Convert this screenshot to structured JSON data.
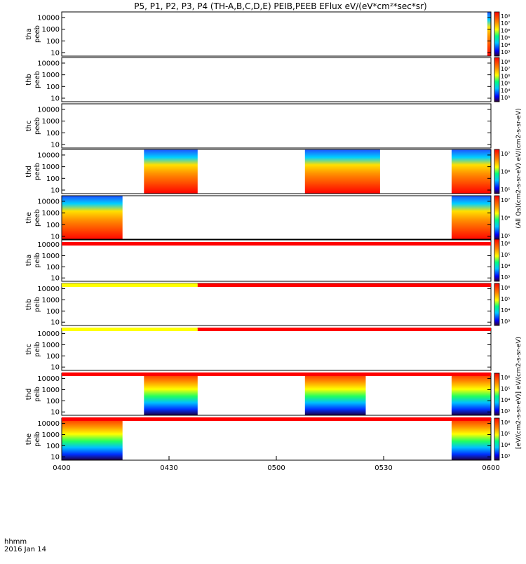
{
  "title": "P5, P1, P2, P3, P4 (TH-A,B,C,D,E) PEIB,PEEB EFlux eV/(eV*cm²*sec*sr)",
  "x_axis": {
    "ticks": [
      "0400",
      "0430",
      "0500",
      "0530",
      "0600"
    ],
    "label": "hhmm",
    "date": "2016 Jan 14"
  },
  "y_ticks": [
    "10000",
    "1000",
    "100",
    "10"
  ],
  "colorbar_label_electron": "(All Qs)(cm2-s-sr-eV) eV/(cm2-s-sr-eV)",
  "colorbar_label_ion": "[eV/(cm2-s-sr-eV)] eV/(cm2-s-sr-eV)",
  "chart_data": {
    "type": "heatmap",
    "time_range": [
      "0400",
      "0600"
    ],
    "energy_range_eV": [
      5,
      30000
    ],
    "y_scale": "log",
    "panels": [
      {
        "label": [
          "tha",
          "peeb"
        ],
        "cbar": [
          "10⁸",
          "10⁷",
          "10⁶",
          "10⁵",
          "10⁴",
          "10³"
        ],
        "cbar_group": "top",
        "blocks": [
          {
            "t0": "0559",
            "t1": "0600"
          }
        ]
      },
      {
        "label": [
          "thb",
          "peeb"
        ],
        "cbar": [
          "10⁸",
          "10⁷",
          "10⁶",
          "10⁵",
          "10⁴",
          "10³"
        ],
        "cbar_group": "mid",
        "blocks": []
      },
      {
        "label": [
          "thc",
          "peeb"
        ],
        "cbar": [],
        "cbar_group": "mid",
        "blocks": []
      },
      {
        "label": [
          "thd",
          "peeb"
        ],
        "cbar": [
          "10⁷",
          "10⁶",
          "10⁵"
        ],
        "cbar_group": "own",
        "blocks": [
          {
            "t0": "0423",
            "t1": "0438"
          },
          {
            "t0": "0508",
            "t1": "0529"
          },
          {
            "t0": "0549",
            "t1": "0600"
          }
        ]
      },
      {
        "label": [
          "the",
          "peeb"
        ],
        "cbar": [
          "10⁷",
          "10⁶",
          "10⁵"
        ],
        "cbar_group": "own",
        "blocks": [
          {
            "t0": "0400",
            "t1": "0417"
          },
          {
            "t0": "0549",
            "t1": "0600"
          }
        ]
      },
      {
        "label": [
          "tha",
          "peib"
        ],
        "cbar": [
          "10⁶",
          "10⁵",
          "10⁴",
          "10³"
        ],
        "cbar_group": "own",
        "blocks": []
      },
      {
        "label": [
          "thb",
          "peib"
        ],
        "cbar": [
          "10⁶",
          "10⁵",
          "10⁴",
          "10³"
        ],
        "cbar_group": "own",
        "blocks": []
      },
      {
        "label": [
          "thc",
          "peib"
        ],
        "cbar": [],
        "cbar_group": "own",
        "blocks": []
      },
      {
        "label": [
          "thd",
          "peib"
        ],
        "cbar": [
          "10⁶",
          "10⁵",
          "10⁴",
          "10³"
        ],
        "cbar_group": "own",
        "blocks": [
          {
            "t0": "0423",
            "t1": "0438"
          },
          {
            "t0": "0508",
            "t1": "0525"
          },
          {
            "t0": "0549",
            "t1": "0600"
          }
        ]
      },
      {
        "label": [
          "the",
          "peib"
        ],
        "cbar": [
          "10⁶",
          "10⁵",
          "10⁴",
          "10³"
        ],
        "cbar_group": "own",
        "blocks": [
          {
            "t0": "0400",
            "t1": "0417"
          },
          {
            "t0": "0549",
            "t1": "0600"
          }
        ]
      }
    ],
    "status_bars": [
      {
        "after_panel": 4,
        "segments": [
          {
            "t0": "0400",
            "t1": "0600",
            "color": "#ff0000"
          }
        ]
      },
      {
        "after_panel": 5,
        "segments": [
          {
            "t0": "0400",
            "t1": "0438",
            "color": "#ffff00"
          },
          {
            "t0": "0438",
            "t1": "0600",
            "color": "#ff0000"
          }
        ]
      },
      {
        "after_panel": 6,
        "segments": [
          {
            "t0": "0400",
            "t1": "0438",
            "color": "#ffff00"
          },
          {
            "t0": "0438",
            "t1": "0600",
            "color": "#ff0000"
          }
        ]
      },
      {
        "after_panel": 7,
        "segments": [
          {
            "t0": "0400",
            "t1": "0600",
            "color": "#ff0000"
          }
        ]
      },
      {
        "after_panel": 8,
        "segments": [
          {
            "t0": "0400",
            "t1": "0600",
            "color": "#ff0000"
          }
        ]
      }
    ]
  }
}
